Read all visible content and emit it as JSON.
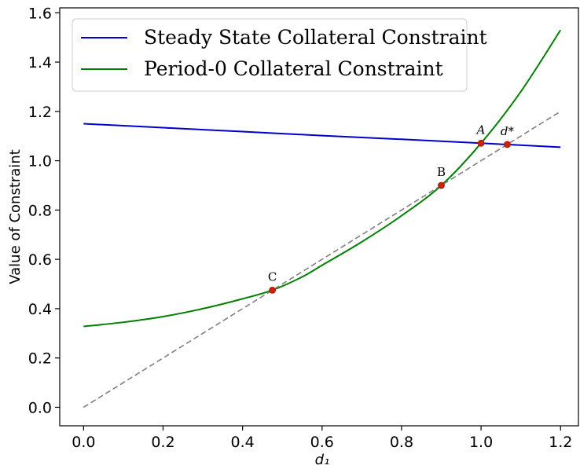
{
  "chart_data": {
    "type": "line",
    "xlabel": "d₁",
    "ylabel": "Value of Constraint",
    "xlim": [
      -0.06,
      1.245
    ],
    "ylim": [
      -0.075,
      1.62
    ],
    "xticks": [
      0.0,
      0.2,
      0.4,
      0.6,
      0.8,
      1.0,
      1.2
    ],
    "xtick_labels": [
      "0.0",
      "0.2",
      "0.4",
      "0.6",
      "0.8",
      "1.0",
      "1.2"
    ],
    "yticks": [
      0.0,
      0.2,
      0.4,
      0.6,
      0.8,
      1.0,
      1.2,
      1.4,
      1.6
    ],
    "ytick_labels": [
      "0.0",
      "0.2",
      "0.4",
      "0.6",
      "0.8",
      "1.0",
      "1.2",
      "1.4",
      "1.6"
    ],
    "grid": false,
    "legend_position": "top-left",
    "series": [
      {
        "name": "Steady State Collateral Constraint",
        "color": "#0000cc",
        "style": "solid",
        "x": [
          0.0,
          0.2,
          0.4,
          0.6,
          0.8,
          1.0,
          1.2
        ],
        "y": [
          1.15,
          1.134,
          1.118,
          1.102,
          1.087,
          1.071,
          1.055
        ]
      },
      {
        "name": "Period-0 Collateral Constraint",
        "color": "#008000",
        "style": "solid",
        "x": [
          0.0,
          0.1,
          0.2,
          0.3,
          0.4,
          0.475,
          0.55,
          0.6,
          0.7,
          0.8,
          0.9,
          1.0,
          1.1,
          1.2
        ],
        "y": [
          0.328,
          0.345,
          0.368,
          0.4,
          0.44,
          0.475,
          0.529,
          0.576,
          0.671,
          0.777,
          0.9,
          1.071,
          1.28,
          1.53
        ]
      },
      {
        "name": "",
        "color": "#808080",
        "style": "dashed",
        "x": [
          0.0,
          1.2
        ],
        "y": [
          0.0,
          1.2
        ]
      }
    ],
    "points": [
      {
        "label": "A",
        "italic": true,
        "x": 1.0,
        "y": 1.071
      },
      {
        "label": "d*",
        "italic": true,
        "x": 1.066,
        "y": 1.066
      },
      {
        "label": "B",
        "italic": false,
        "x": 0.9,
        "y": 0.9
      },
      {
        "label": "C",
        "italic": false,
        "x": 0.475,
        "y": 0.475
      }
    ],
    "point_color": "#cc2200"
  }
}
